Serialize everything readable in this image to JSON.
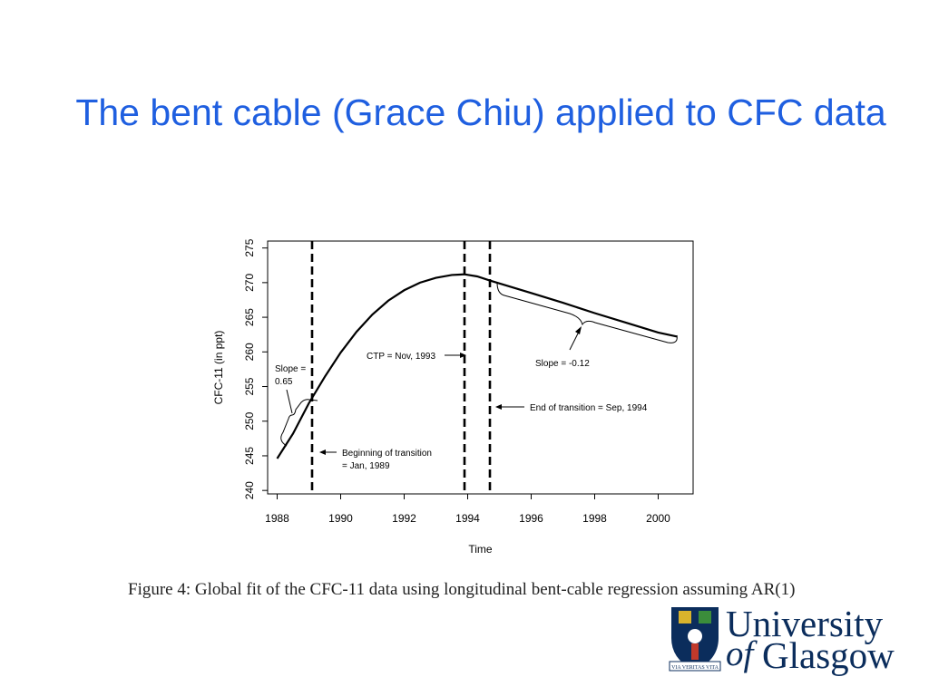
{
  "slide": {
    "title": "The bent cable (Grace Chiu) applied to CFC data"
  },
  "chart_data": {
    "type": "line",
    "xlabel": "Time",
    "ylabel": "CFC-11 (in ppt)",
    "xlim": [
      1987.7,
      2001.1
    ],
    "ylim": [
      239.5,
      276
    ],
    "x_ticks": [
      1988,
      1990,
      1992,
      1994,
      1996,
      1998,
      2000
    ],
    "y_ticks": [
      240,
      245,
      250,
      255,
      260,
      265,
      270,
      275
    ],
    "grid": false,
    "series": [
      {
        "name": "",
        "x": [
          1988.0,
          1988.5,
          1989.0,
          1989.5,
          1990.0,
          1990.5,
          1991.0,
          1991.5,
          1992.0,
          1992.5,
          1993.0,
          1993.5,
          1993.9,
          1994.3,
          1994.7,
          1996.0,
          1997.0,
          1998.0,
          1999.0,
          2000.0,
          2000.6
        ],
        "y": [
          244.6,
          248.2,
          252.6,
          256.4,
          259.9,
          262.9,
          265.4,
          267.4,
          268.9,
          270.0,
          270.7,
          271.1,
          271.2,
          270.9,
          270.3,
          268.5,
          267.1,
          265.6,
          264.2,
          262.8,
          262.2
        ]
      }
    ],
    "vlines": [
      1989.1,
      1993.9,
      1994.7
    ],
    "annotations": {
      "slope_left": "Slope = 0.65",
      "ctp": "CTP = Nov, 1993",
      "slope_right": "Slope = -0.12",
      "beginning": "Beginning of transition = Jan, 1989",
      "end": "End of transition = Sep, 1994"
    }
  },
  "caption": "Figure 4: Global fit of the CFC-11 data using longitudinal bent-cable regression assuming AR(1)",
  "logo": {
    "line1": "University",
    "line2_italic": "of",
    "line2": "Glasgow",
    "motto": "VIA VERITAS VITA",
    "brand_color": "#0b2d5c"
  }
}
